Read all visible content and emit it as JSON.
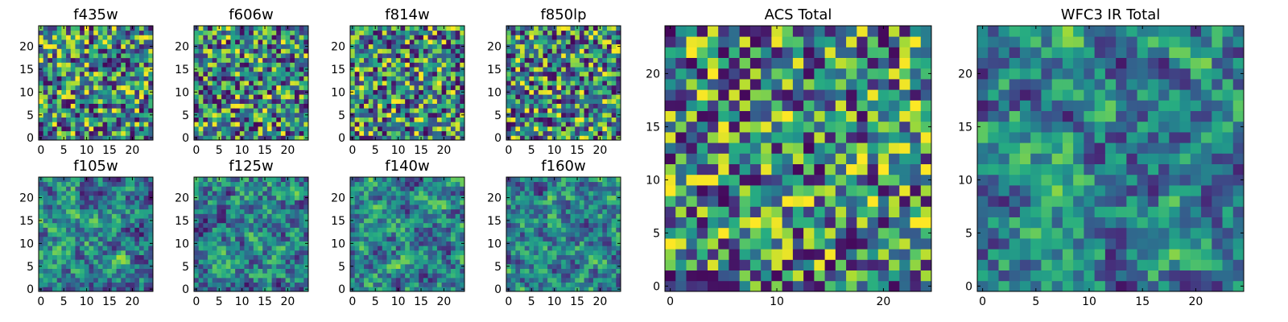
{
  "figure": {
    "title": "",
    "note": "Grid of 10 heatmap panels (viridis colormap)"
  },
  "chart_data": [
    {
      "type": "heatmap",
      "title": "f435w",
      "cols": 25,
      "rows": 25,
      "xlim": [
        0,
        24
      ],
      "ylim": [
        0,
        24
      ],
      "xticks": [
        0,
        5,
        10,
        15,
        20
      ],
      "yticks": [
        0,
        5,
        10,
        15,
        20
      ],
      "colormap": "viridis",
      "seed": 11,
      "style": "fine"
    },
    {
      "type": "heatmap",
      "title": "f606w",
      "cols": 25,
      "rows": 25,
      "xlim": [
        0,
        24
      ],
      "ylim": [
        0,
        24
      ],
      "xticks": [
        0,
        5,
        10,
        15,
        20
      ],
      "yticks": [
        0,
        5,
        10,
        15,
        20
      ],
      "colormap": "viridis",
      "seed": 23,
      "style": "fine"
    },
    {
      "type": "heatmap",
      "title": "f814w",
      "cols": 25,
      "rows": 25,
      "xlim": [
        0,
        24
      ],
      "ylim": [
        0,
        24
      ],
      "xticks": [
        0,
        5,
        10,
        15,
        20
      ],
      "yticks": [
        0,
        5,
        10,
        15,
        20
      ],
      "colormap": "viridis",
      "seed": 37,
      "style": "fine"
    },
    {
      "type": "heatmap",
      "title": "f850lp",
      "cols": 25,
      "rows": 25,
      "xlim": [
        0,
        24
      ],
      "ylim": [
        0,
        24
      ],
      "xticks": [
        0,
        5,
        10,
        15,
        20
      ],
      "yticks": [
        0,
        5,
        10,
        15,
        20
      ],
      "colormap": "viridis",
      "seed": 41,
      "style": "fine"
    },
    {
      "type": "heatmap",
      "title": "f105w",
      "cols": 25,
      "rows": 25,
      "xlim": [
        0,
        24
      ],
      "ylim": [
        0,
        24
      ],
      "xticks": [
        0,
        5,
        10,
        15,
        20
      ],
      "yticks": [
        0,
        5,
        10,
        15,
        20
      ],
      "colormap": "viridis",
      "seed": 53,
      "style": "smooth"
    },
    {
      "type": "heatmap",
      "title": "f125w",
      "cols": 25,
      "rows": 25,
      "xlim": [
        0,
        24
      ],
      "ylim": [
        0,
        24
      ],
      "xticks": [
        0,
        5,
        10,
        15,
        20
      ],
      "yticks": [
        0,
        5,
        10,
        15,
        20
      ],
      "colormap": "viridis",
      "seed": 67,
      "style": "smooth"
    },
    {
      "type": "heatmap",
      "title": "f140w",
      "cols": 25,
      "rows": 25,
      "xlim": [
        0,
        24
      ],
      "ylim": [
        0,
        24
      ],
      "xticks": [
        0,
        5,
        10,
        15,
        20
      ],
      "yticks": [
        0,
        5,
        10,
        15,
        20
      ],
      "colormap": "viridis",
      "seed": 71,
      "style": "smooth"
    },
    {
      "type": "heatmap",
      "title": "f160w",
      "cols": 25,
      "rows": 25,
      "xlim": [
        0,
        24
      ],
      "ylim": [
        0,
        24
      ],
      "xticks": [
        0,
        5,
        10,
        15,
        20
      ],
      "yticks": [
        0,
        5,
        10,
        15,
        20
      ],
      "colormap": "viridis",
      "seed": 89,
      "style": "smooth"
    },
    {
      "type": "heatmap",
      "title": "ACS Total",
      "cols": 25,
      "rows": 25,
      "xlim": [
        0,
        24
      ],
      "ylim": [
        0,
        24
      ],
      "xticks": [
        0,
        10,
        20
      ],
      "yticks": [
        0,
        5,
        10,
        15,
        20
      ],
      "colormap": "viridis",
      "seed": 97,
      "style": "fine"
    },
    {
      "type": "heatmap",
      "title": "WFC3 IR Total",
      "cols": 25,
      "rows": 25,
      "xlim": [
        0,
        24
      ],
      "ylim": [
        0,
        24
      ],
      "xticks": [
        0,
        5,
        10,
        15,
        20
      ],
      "yticks": [
        0,
        5,
        10,
        15,
        20
      ],
      "colormap": "viridis",
      "seed": 101,
      "style": "smooth"
    }
  ]
}
